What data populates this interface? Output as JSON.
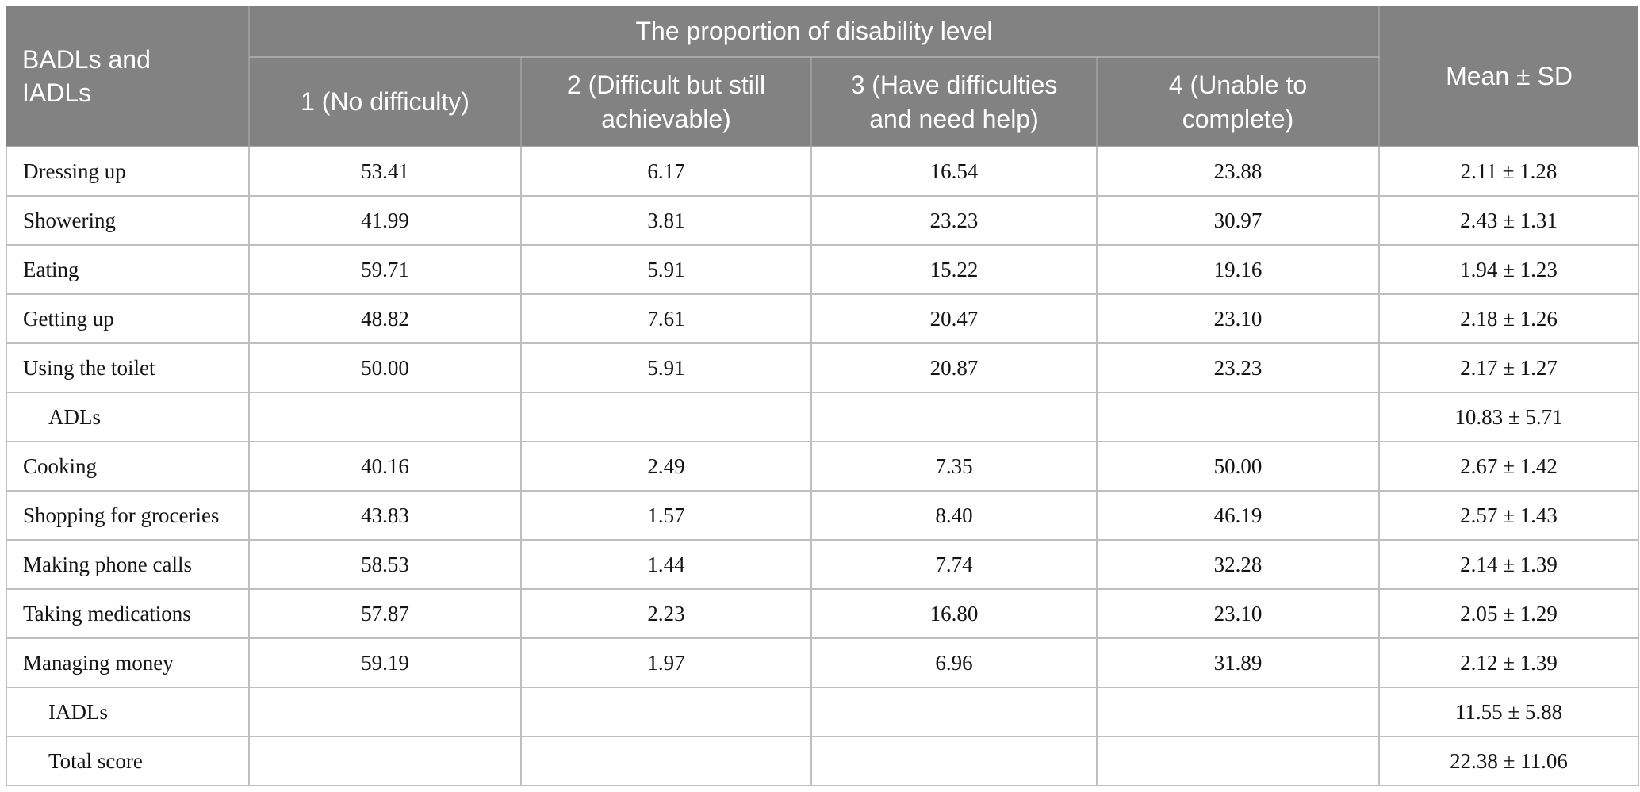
{
  "table": {
    "header": {
      "row_label": "BADLs and\nIADLs",
      "group_label": "The proportion of disability level",
      "mean_label": "Mean ± SD",
      "level_labels": [
        "1 (No difficulty)",
        "2 (Difficult but still\nachievable)",
        "3 (Have difficulties\nand need help)",
        "4 (Unable to\ncomplete)"
      ]
    },
    "rows": [
      {
        "label": "Dressing up",
        "indent": false,
        "values": [
          "53.41",
          "6.17",
          "16.54",
          "23.88"
        ],
        "mean_sd": "2.11 ± 1.28"
      },
      {
        "label": "Showering",
        "indent": false,
        "values": [
          "41.99",
          "3.81",
          "23.23",
          "30.97"
        ],
        "mean_sd": "2.43 ± 1.31"
      },
      {
        "label": "Eating",
        "indent": false,
        "values": [
          "59.71",
          "5.91",
          "15.22",
          "19.16"
        ],
        "mean_sd": "1.94 ± 1.23"
      },
      {
        "label": "Getting up",
        "indent": false,
        "values": [
          "48.82",
          "7.61",
          "20.47",
          "23.10"
        ],
        "mean_sd": "2.18 ± 1.26"
      },
      {
        "label": "Using the toilet",
        "indent": false,
        "values": [
          "50.00",
          "5.91",
          "20.87",
          "23.23"
        ],
        "mean_sd": "2.17 ± 1.27"
      },
      {
        "label": "ADLs",
        "indent": true,
        "values": [
          "",
          "",
          "",
          ""
        ],
        "mean_sd": "10.83 ± 5.71"
      },
      {
        "label": "Cooking",
        "indent": false,
        "values": [
          "40.16",
          "2.49",
          "7.35",
          "50.00"
        ],
        "mean_sd": "2.67 ± 1.42"
      },
      {
        "label": "Shopping for groceries",
        "indent": false,
        "values": [
          "43.83",
          "1.57",
          "8.40",
          "46.19"
        ],
        "mean_sd": "2.57 ± 1.43"
      },
      {
        "label": "Making phone calls",
        "indent": false,
        "values": [
          "58.53",
          "1.44",
          "7.74",
          "32.28"
        ],
        "mean_sd": "2.14 ± 1.39"
      },
      {
        "label": "Taking medications",
        "indent": false,
        "values": [
          "57.87",
          "2.23",
          "16.80",
          "23.10"
        ],
        "mean_sd": "2.05 ± 1.29"
      },
      {
        "label": "Managing money",
        "indent": false,
        "values": [
          "59.19",
          "1.97",
          "6.96",
          "31.89"
        ],
        "mean_sd": "2.12 ± 1.39"
      },
      {
        "label": "IADLs",
        "indent": true,
        "values": [
          "",
          "",
          "",
          ""
        ],
        "mean_sd": "11.55 ± 5.88"
      },
      {
        "label": "Total score",
        "indent": true,
        "values": [
          "",
          "",
          "",
          ""
        ],
        "mean_sd": "22.38 ± 11.06"
      }
    ]
  },
  "colors": {
    "header_background": "#828282",
    "header_text": "#ffffff",
    "header_border": "#9b9b9b",
    "body_border": "#bfbfbf",
    "body_text": "#141414"
  },
  "chart_data": {
    "type": "table",
    "title": "The proportion of disability level",
    "columns": [
      "BADLs and IADLs",
      "1 (No difficulty)",
      "2 (Difficult but still achievable)",
      "3 (Have difficulties and need help)",
      "4 (Unable to complete)",
      "Mean ± SD"
    ],
    "rows": [
      [
        "Dressing up",
        53.41,
        6.17,
        16.54,
        23.88,
        "2.11 ± 1.28"
      ],
      [
        "Showering",
        41.99,
        3.81,
        23.23,
        30.97,
        "2.43 ± 1.31"
      ],
      [
        "Eating",
        59.71,
        5.91,
        15.22,
        19.16,
        "1.94 ± 1.23"
      ],
      [
        "Getting up",
        48.82,
        7.61,
        20.47,
        23.1,
        "2.18 ± 1.26"
      ],
      [
        "Using the toilet",
        50.0,
        5.91,
        20.87,
        23.23,
        "2.17 ± 1.27"
      ],
      [
        "ADLs",
        null,
        null,
        null,
        null,
        "10.83 ± 5.71"
      ],
      [
        "Cooking",
        40.16,
        2.49,
        7.35,
        50.0,
        "2.67 ± 1.42"
      ],
      [
        "Shopping for groceries",
        43.83,
        1.57,
        8.4,
        46.19,
        "2.57 ± 1.43"
      ],
      [
        "Making phone calls",
        58.53,
        1.44,
        7.74,
        32.28,
        "2.14 ± 1.39"
      ],
      [
        "Taking medications",
        57.87,
        2.23,
        16.8,
        23.1,
        "2.05 ± 1.29"
      ],
      [
        "Managing money",
        59.19,
        1.97,
        6.96,
        31.89,
        "2.12 ± 1.39"
      ],
      [
        "IADLs",
        null,
        null,
        null,
        null,
        "11.55 ± 5.88"
      ],
      [
        "Total score",
        null,
        null,
        null,
        null,
        "22.38 ± 11.06"
      ]
    ]
  }
}
